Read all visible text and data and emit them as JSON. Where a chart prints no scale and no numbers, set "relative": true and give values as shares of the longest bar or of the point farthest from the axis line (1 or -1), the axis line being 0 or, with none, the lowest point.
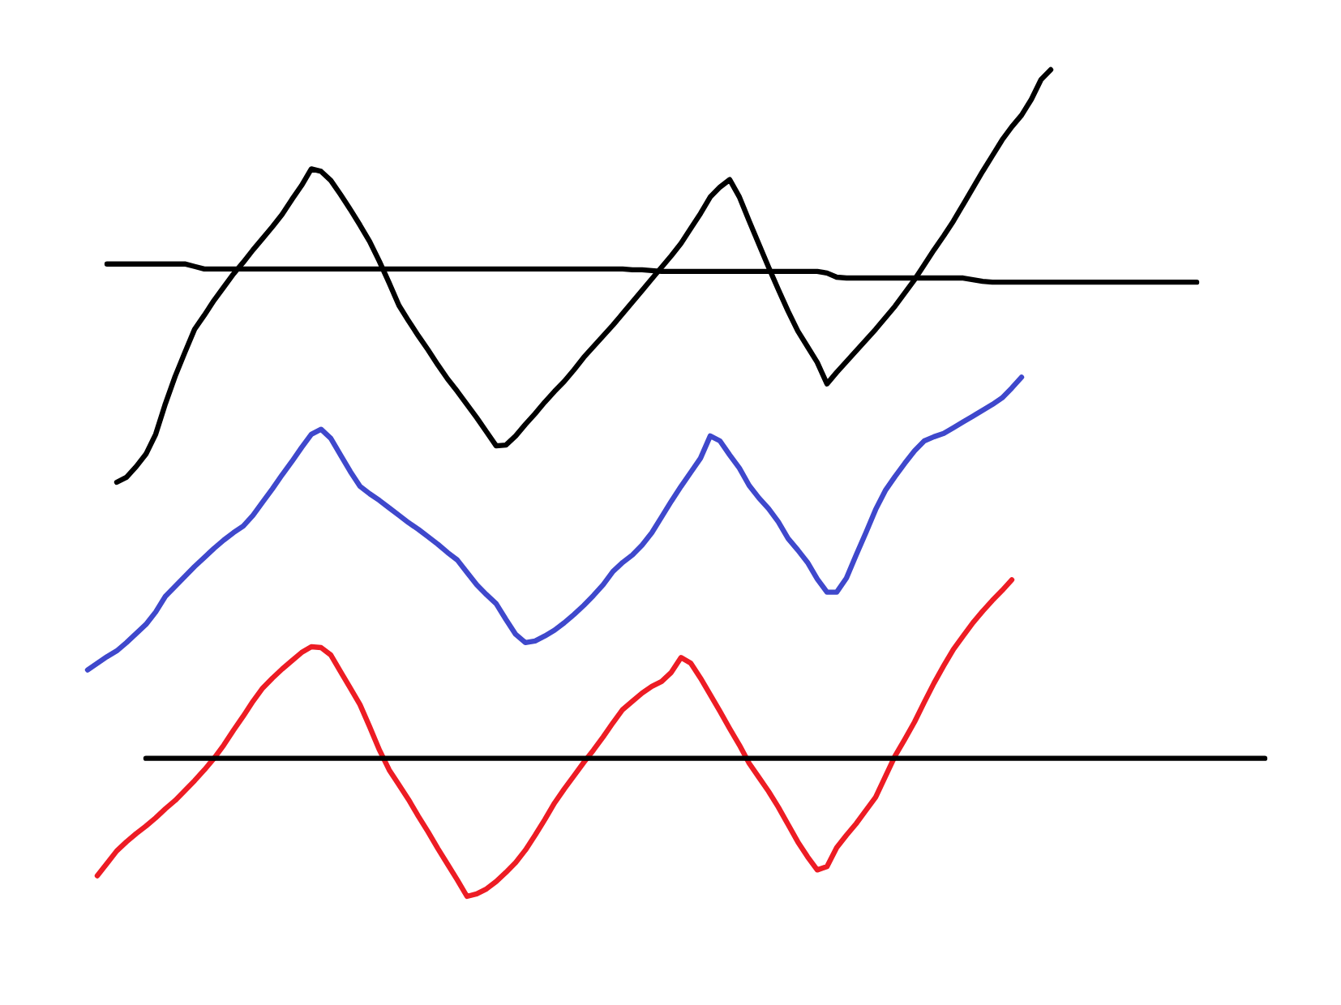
{
  "chart_data": {
    "type": "line",
    "relative": true,
    "categories": [
      null,
      null,
      null,
      null,
      null,
      null,
      null,
      null,
      null,
      null,
      null,
      null,
      null,
      null,
      null,
      null,
      null,
      null,
      null,
      null,
      null,
      null,
      null,
      null,
      null,
      null,
      null,
      null,
      null,
      null,
      null,
      null,
      null,
      null,
      null,
      null,
      null,
      null,
      null,
      null,
      null,
      null,
      null,
      null,
      null,
      null,
      null,
      null,
      null,
      null,
      null,
      null,
      null,
      null,
      null,
      null,
      null,
      null,
      null,
      null,
      null,
      null,
      null,
      null,
      null,
      null,
      null,
      null,
      null,
      null,
      null,
      null,
      null,
      null,
      null,
      null,
      null,
      null,
      null,
      null,
      null,
      null,
      null,
      null,
      null,
      null,
      null,
      null,
      null,
      null,
      null,
      null,
      null,
      null,
      null,
      null,
      null,
      null,
      null,
      null,
      null,
      null,
      null,
      null,
      null,
      null,
      null,
      null,
      null,
      null,
      null,
      null,
      null,
      null,
      null,
      null,
      null,
      null,
      null,
      null,
      null,
      null
    ],
    "series": [
      {
        "color": "#000000",
        "values": [
          null,
          null,
          null,
          0.501,
          0.507,
          0.52,
          0.535,
          0.559,
          0.596,
          0.629,
          0.658,
          0.686,
          0.703,
          0.721,
          0.737,
          0.753,
          0.767,
          0.782,
          0.796,
          0.81,
          0.825,
          0.843,
          0.86,
          0.88,
          0.877,
          0.866,
          0.849,
          0.831,
          0.812,
          0.792,
          0.768,
          0.742,
          0.715,
          0.696,
          0.678,
          0.661,
          0.643,
          0.626,
          0.611,
          0.595,
          0.579,
          0.562,
          0.545,
          0.546,
          0.557,
          0.571,
          0.584,
          0.598,
          0.611,
          0.623,
          0.637,
          0.652,
          0.665,
          0.678,
          0.691,
          0.705,
          0.719,
          0.733,
          0.747,
          0.761,
          0.775,
          0.79,
          0.808,
          0.826,
          0.846,
          0.858,
          0.867,
          0.846,
          0.817,
          0.789,
          0.761,
          0.734,
          0.708,
          0.684,
          0.665,
          0.646,
          0.62,
          0.634,
          0.647,
          0.66,
          0.673,
          0.686,
          0.7,
          0.714,
          0.73,
          0.746,
          0.764,
          0.782,
          0.799,
          0.817,
          0.837,
          0.857,
          0.877,
          0.896,
          0.915,
          0.931,
          0.945,
          0.964,
          0.988,
          1.0,
          null,
          null,
          null,
          null,
          null,
          null,
          null,
          null,
          null,
          null,
          null,
          null,
          null,
          null,
          null,
          null,
          null,
          null,
          null,
          null,
          null,
          null
        ]
      },
      {
        "color": "#000000",
        "values": [
          null,
          null,
          0.765,
          0.765,
          0.765,
          0.765,
          0.765,
          0.765,
          0.765,
          0.765,
          0.765,
          0.762,
          0.759,
          0.759,
          0.759,
          0.759,
          0.759,
          0.759,
          0.759,
          0.759,
          0.759,
          0.759,
          0.759,
          0.759,
          0.759,
          0.759,
          0.759,
          0.759,
          0.759,
          0.759,
          0.759,
          0.759,
          0.759,
          0.759,
          0.759,
          0.759,
          0.759,
          0.759,
          0.759,
          0.759,
          0.759,
          0.759,
          0.759,
          0.759,
          0.759,
          0.759,
          0.759,
          0.759,
          0.759,
          0.759,
          0.759,
          0.759,
          0.759,
          0.759,
          0.759,
          0.759,
          0.758,
          0.758,
          0.757,
          0.756,
          0.756,
          0.756,
          0.756,
          0.756,
          0.756,
          0.756,
          0.756,
          0.756,
          0.756,
          0.756,
          0.756,
          0.756,
          0.756,
          0.756,
          0.756,
          0.756,
          0.754,
          0.749,
          0.748,
          0.748,
          0.748,
          0.748,
          0.748,
          0.748,
          0.748,
          0.748,
          0.748,
          0.748,
          0.748,
          0.748,
          0.748,
          0.746,
          0.744,
          0.743,
          0.743,
          0.743,
          0.743,
          0.743,
          0.743,
          0.743,
          0.743,
          0.743,
          0.743,
          0.743,
          0.743,
          0.743,
          0.743,
          0.743,
          0.743,
          0.743,
          0.743,
          0.743,
          0.743,
          0.743,
          0.743,
          null,
          null,
          null,
          null,
          null,
          null,
          null
        ]
      },
      {
        "color": "#3f48cc",
        "values": [
          0.274,
          0.282,
          0.29,
          0.297,
          0.307,
          0.318,
          0.329,
          0.344,
          0.363,
          0.375,
          0.387,
          0.399,
          0.41,
          0.421,
          0.431,
          0.44,
          0.448,
          0.461,
          0.477,
          0.493,
          0.51,
          0.526,
          0.543,
          0.559,
          0.565,
          0.554,
          0.534,
          0.514,
          0.496,
          0.487,
          0.479,
          0.47,
          0.461,
          0.452,
          0.444,
          0.435,
          0.426,
          0.416,
          0.407,
          0.392,
          0.377,
          0.365,
          0.354,
          0.335,
          0.317,
          0.307,
          0.309,
          0.315,
          0.322,
          0.331,
          0.341,
          0.352,
          0.364,
          0.377,
          0.393,
          0.404,
          0.413,
          0.425,
          0.44,
          0.459,
          0.478,
          0.496,
          0.513,
          0.53,
          0.557,
          0.551,
          0.534,
          0.518,
          0.497,
          0.482,
          0.469,
          0.453,
          0.433,
          0.419,
          0.404,
          0.384,
          0.368,
          0.368,
          0.385,
          0.413,
          0.44,
          0.468,
          0.491,
          0.508,
          0.524,
          0.539,
          0.551,
          0.556,
          0.56,
          0.567,
          0.574,
          0.581,
          0.588,
          0.595,
          0.603,
          0.615,
          0.628,
          null,
          null,
          null,
          null,
          null,
          null,
          null,
          null,
          null,
          null,
          null,
          null,
          null,
          null,
          null,
          null,
          null,
          null,
          null,
          null,
          null,
          null,
          null,
          null,
          null
        ]
      },
      {
        "color": "#ed1c24",
        "values": [
          null,
          0.025,
          0.04,
          0.055,
          0.066,
          0.076,
          0.085,
          0.095,
          0.106,
          0.116,
          0.128,
          0.14,
          0.153,
          0.167,
          0.183,
          0.201,
          0.218,
          0.236,
          0.252,
          0.264,
          0.275,
          0.285,
          0.295,
          0.302,
          0.301,
          0.292,
          0.272,
          0.252,
          0.232,
          0.205,
          0.177,
          0.153,
          0.135,
          0.117,
          0.097,
          0.078,
          0.058,
          0.039,
          0.02,
          0.0,
          0.003,
          0.009,
          0.018,
          0.029,
          0.041,
          0.056,
          0.074,
          0.093,
          0.113,
          0.13,
          0.146,
          0.162,
          0.177,
          0.193,
          0.21,
          0.226,
          0.236,
          0.246,
          0.254,
          0.26,
          0.271,
          0.289,
          0.282,
          0.264,
          0.244,
          0.224,
          0.203,
          0.183,
          0.161,
          0.144,
          0.127,
          0.108,
          0.087,
          0.066,
          0.048,
          0.032,
          0.036,
          0.059,
          0.074,
          0.088,
          0.104,
          0.12,
          0.145,
          0.17,
          0.19,
          0.211,
          0.235,
          0.258,
          0.279,
          0.299,
          0.315,
          0.331,
          0.345,
          0.358,
          0.37,
          0.383,
          null,
          null,
          null,
          null,
          null,
          null,
          null,
          null,
          null,
          null,
          null,
          null,
          null,
          null,
          null,
          null,
          null,
          null,
          null,
          null,
          null,
          null,
          null,
          null,
          null,
          null
        ]
      },
      {
        "color": "#000000",
        "values": [
          null,
          null,
          null,
          null,
          null,
          null,
          0.167,
          0.167,
          0.167,
          0.167,
          0.167,
          0.167,
          0.167,
          0.167,
          0.167,
          0.167,
          0.167,
          0.167,
          0.167,
          0.167,
          0.167,
          0.167,
          0.167,
          0.167,
          0.167,
          0.167,
          0.167,
          0.167,
          0.167,
          0.167,
          0.167,
          0.167,
          0.167,
          0.167,
          0.167,
          0.167,
          0.167,
          0.167,
          0.167,
          0.167,
          0.167,
          0.167,
          0.167,
          0.167,
          0.167,
          0.167,
          0.167,
          0.167,
          0.167,
          0.167,
          0.167,
          0.167,
          0.167,
          0.167,
          0.167,
          0.167,
          0.167,
          0.167,
          0.167,
          0.167,
          0.167,
          0.167,
          0.167,
          0.167,
          0.167,
          0.167,
          0.167,
          0.167,
          0.167,
          0.167,
          0.167,
          0.167,
          0.167,
          0.167,
          0.167,
          0.167,
          0.167,
          0.167,
          0.167,
          0.167,
          0.167,
          0.167,
          0.167,
          0.167,
          0.167,
          0.167,
          0.167,
          0.167,
          0.167,
          0.167,
          0.167,
          0.167,
          0.167,
          0.167,
          0.167,
          0.167,
          0.167,
          0.167,
          0.167,
          0.167,
          0.167,
          0.167,
          0.167,
          0.167,
          0.167,
          0.167,
          0.167,
          0.167,
          0.167,
          0.167,
          0.167,
          0.167,
          0.167,
          0.167,
          0.167,
          0.167,
          0.167,
          0.167,
          0.167,
          0.167,
          0.167,
          0.167
        ]
      }
    ]
  }
}
